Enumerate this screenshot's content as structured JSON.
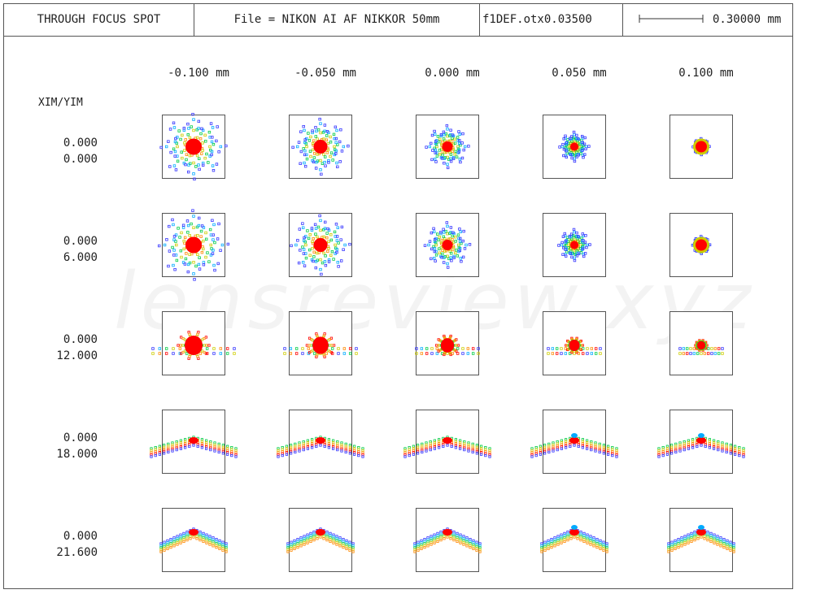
{
  "header": {
    "title": "THROUGH FOCUS SPOT",
    "file": "File = NIKON AI AF NIKKOR 50mm",
    "defocus": "f1DEF.otx0.03500",
    "scale_label": "0.30000 mm"
  },
  "watermark": "lensreview.xyz",
  "xim_yim_label": "XIM/YIM",
  "columns": [
    "-0.100  mm",
    "-0.050  mm",
    "0.000  mm",
    "0.050  mm",
    "0.100  mm"
  ],
  "rows": [
    {
      "xim": "0.000",
      "yim": "0.000"
    },
    {
      "xim": "0.000",
      "yim": "6.000"
    },
    {
      "xim": "0.000",
      "yim": "12.000"
    },
    {
      "xim": "0.000",
      "yim": "18.000"
    },
    {
      "xim": "0.000",
      "yim": "21.600"
    }
  ],
  "colors": {
    "wl1": "#ff0000",
    "wl2": "#ff8800",
    "wl3": "#cccc00",
    "wl4": "#00cc44",
    "wl5": "#00aaff",
    "wl6": "#3333ff"
  }
}
